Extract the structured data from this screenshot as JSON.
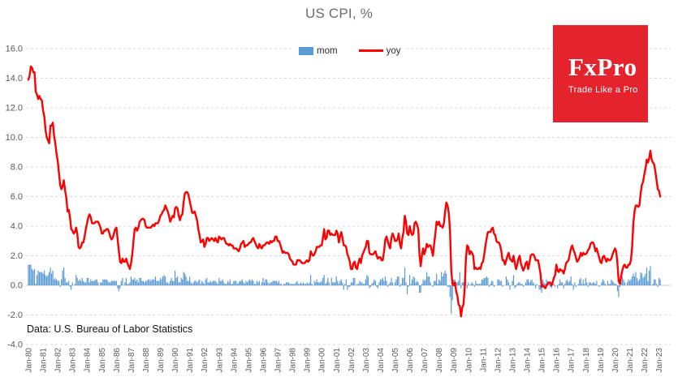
{
  "title": "US CPI, %",
  "source_note": "Data: U.S. Bureau of Labor Statistics",
  "logo": {
    "wordmark": "FxPro",
    "tagline": "Trade Like a Pro",
    "bg_color": "#e4232d",
    "text_color": "#ffffff"
  },
  "legend": {
    "position": "top-center",
    "items": [
      {
        "label": "mom",
        "type": "bar",
        "color": "#5b9bd5"
      },
      {
        "label": "yoy",
        "type": "line",
        "color": "#fe0000"
      }
    ]
  },
  "colors": {
    "grid": "#dadada",
    "zero_axis": "#c8c8c8",
    "axis_text": "#595959",
    "title_text": "#6b6b70"
  },
  "chart_data": {
    "type": "bar+line",
    "title": "US CPI, %",
    "x_unit": "month",
    "x_range": [
      "Jan-1980",
      "Feb-2023"
    ],
    "ylim": [
      -4.0,
      16.0
    ],
    "grid": "horizontal-dashed",
    "legend_position": "top-center",
    "y_tick_labels": [
      "16.0",
      "14.0",
      "12.0",
      "10.0",
      "8.0",
      "6.0",
      "4.0",
      "2.0",
      "0.0",
      "-2.0",
      "-4.0"
    ],
    "x_tick_labels": [
      "Jan-80",
      "Jan-81",
      "Jan-82",
      "Jan-83",
      "Jan-84",
      "Jan-85",
      "Jan-86",
      "Jan-87",
      "Jan-88",
      "Jan-89",
      "Jan-90",
      "Jan-91",
      "Jan-92",
      "Jan-93",
      "Jan-94",
      "Jan-95",
      "Jan-96",
      "Jan-97",
      "Jan-98",
      "Jan-99",
      "Jan-00",
      "Jan-01",
      "Jan-02",
      "Jan-03",
      "Jan-04",
      "Jan-05",
      "Jan-06",
      "Jan-07",
      "Jan-08",
      "Jan-09",
      "Jan-10",
      "Jan-11",
      "Jan-12",
      "Jan-13",
      "Jan-14",
      "Jan-15",
      "Jan-16",
      "Jan-17",
      "Jan-18",
      "Jan-19",
      "Jan-20",
      "Jan-21",
      "Jan-22",
      "Jan-23"
    ],
    "x_ticks_every_n_points": 12,
    "series": [
      {
        "name": "mom",
        "type": "bar",
        "color": "#5b9bd5",
        "values": [
          1.4,
          1.4,
          1.4,
          1.1,
          1.0,
          1.1,
          0.1,
          0.7,
          1.0,
          0.9,
          0.9,
          0.9,
          0.8,
          1.0,
          0.7,
          0.6,
          0.7,
          0.9,
          1.2,
          0.8,
          1.0,
          0.4,
          0.5,
          0.4,
          0.3,
          0.3,
          -0.1,
          0.4,
          1.0,
          1.2,
          0.5,
          0.2,
          0.2,
          0.3,
          -0.1,
          -0.3,
          0.2,
          0.0,
          0.1,
          0.7,
          0.5,
          0.3,
          0.4,
          0.3,
          0.5,
          0.3,
          0.2,
          0.2,
          0.5,
          0.5,
          0.2,
          0.4,
          0.3,
          0.3,
          0.3,
          0.4,
          0.4,
          0.2,
          0.0,
          0.2,
          0.2,
          0.4,
          0.4,
          0.4,
          0.4,
          0.3,
          0.2,
          0.2,
          0.3,
          0.3,
          0.3,
          0.3,
          0.3,
          -0.2,
          -0.4,
          -0.2,
          0.3,
          0.5,
          0.0,
          0.2,
          0.5,
          0.1,
          0.1,
          0.2,
          0.6,
          0.4,
          0.4,
          0.5,
          0.3,
          0.4,
          0.2,
          0.5,
          0.5,
          0.3,
          0.3,
          0.2,
          0.3,
          0.3,
          0.4,
          0.4,
          0.3,
          0.4,
          0.4,
          0.4,
          0.6,
          0.3,
          0.3,
          0.3,
          0.5,
          0.4,
          0.6,
          0.7,
          0.6,
          0.2,
          0.2,
          0.1,
          0.3,
          0.5,
          0.3,
          0.3,
          1.0,
          0.5,
          0.6,
          0.2,
          0.2,
          0.5,
          0.4,
          0.9,
          0.8,
          0.6,
          0.3,
          0.3,
          0.6,
          0.2,
          0.1,
          0.2,
          0.3,
          0.3,
          0.2,
          0.3,
          0.4,
          0.1,
          0.3,
          0.2,
          0.1,
          0.4,
          0.5,
          0.2,
          0.2,
          0.3,
          0.2,
          0.3,
          0.3,
          0.3,
          0.2,
          0.1,
          0.5,
          0.3,
          0.3,
          0.4,
          0.2,
          0.1,
          0.1,
          0.3,
          0.2,
          0.4,
          0.1,
          0.1,
          0.3,
          0.3,
          0.3,
          0.1,
          0.2,
          0.3,
          0.3,
          0.4,
          0.2,
          0.1,
          0.3,
          0.2,
          0.3,
          0.4,
          0.3,
          0.4,
          0.3,
          0.1,
          0.1,
          0.3,
          0.2,
          0.3,
          0.0,
          0.2,
          0.5,
          0.2,
          0.4,
          0.4,
          0.2,
          0.1,
          0.2,
          0.2,
          0.3,
          0.3,
          0.3,
          0.3,
          0.2,
          0.3,
          0.1,
          0.1,
          0.0,
          0.1,
          0.1,
          0.2,
          0.2,
          0.2,
          0.1,
          0.1,
          0.1,
          0.1,
          0.1,
          0.2,
          0.3,
          0.1,
          0.1,
          0.2,
          0.1,
          0.2,
          0.1,
          0.1,
          0.2,
          0.1,
          0.2,
          0.7,
          0.1,
          0.0,
          0.3,
          0.2,
          0.4,
          0.2,
          0.2,
          0.2,
          0.3,
          0.5,
          0.7,
          0.1,
          0.2,
          0.5,
          0.2,
          0.0,
          0.5,
          0.2,
          0.2,
          0.2,
          0.6,
          0.3,
          0.1,
          0.3,
          0.4,
          0.2,
          -0.3,
          0.1,
          0.4,
          -0.3,
          -0.1,
          -0.1,
          0.2,
          0.2,
          0.5,
          0.5,
          0.0,
          0.1,
          0.1,
          0.3,
          0.2,
          0.2,
          0.1,
          0.1,
          0.4,
          0.7,
          0.6,
          -0.2,
          -0.1,
          0.1,
          0.2,
          0.4,
          0.3,
          -0.1,
          -0.2,
          0.2,
          0.4,
          0.4,
          0.5,
          0.3,
          0.6,
          0.3,
          -0.1,
          0.1,
          0.2,
          0.5,
          0.2,
          0.0,
          0.2,
          0.4,
          0.6,
          0.6,
          -0.1,
          0.1,
          0.5,
          0.5,
          1.2,
          0.2,
          -0.6,
          -0.1,
          0.7,
          0.1,
          0.4,
          0.6,
          0.5,
          0.2,
          0.3,
          0.2,
          -0.5,
          -0.5,
          0.1,
          0.4,
          0.3,
          0.4,
          0.9,
          0.6,
          0.6,
          0.2,
          0.0,
          -0.1,
          0.3,
          0.3,
          0.8,
          0.1,
          0.4,
          0.3,
          0.9,
          0.6,
          0.8,
          1.0,
          0.8,
          -0.1,
          -0.1,
          -0.8,
          -1.9,
          -1.0,
          0.4,
          0.4,
          0.2,
          0.2,
          0.3,
          0.9,
          -0.2,
          0.2,
          0.2,
          0.2,
          0.3,
          -0.2,
          0.2,
          0.0,
          0.1,
          0.2,
          0.1,
          -0.1,
          0.3,
          0.1,
          0.1,
          0.1,
          0.1,
          0.4,
          0.4,
          0.5,
          0.5,
          0.6,
          0.5,
          -0.1,
          0.1,
          0.3,
          0.3,
          -0.1,
          0.0,
          0.0,
          0.4,
          0.4,
          0.3,
          0.3,
          -0.1,
          0.0,
          0.0,
          0.6,
          0.4,
          0.2,
          -0.3,
          0.0,
          0.3,
          0.7,
          -0.2,
          -0.1,
          0.1,
          0.2,
          0.2,
          0.1,
          0.1,
          -0.1,
          0.0,
          0.2,
          0.4,
          0.4,
          0.2,
          0.3,
          0.4,
          0.2,
          0.1,
          -0.2,
          0.1,
          0.0,
          -0.3,
          -0.3,
          -0.5,
          0.4,
          0.2,
          0.1,
          0.4,
          0.3,
          0.1,
          -0.1,
          -0.2,
          0.2,
          0.1,
          -0.1,
          0.0,
          -0.2,
          0.1,
          0.4,
          0.2,
          0.2,
          -0.2,
          0.1,
          0.3,
          0.4,
          0.2,
          0.3,
          0.6,
          0.1,
          -0.3,
          0.2,
          -0.1,
          0.0,
          0.1,
          0.4,
          0.5,
          0.1,
          0.4,
          0.1,
          0.5,
          0.2,
          -0.1,
          0.2,
          0.2,
          0.1,
          0.2,
          0.2,
          0.1,
          0.3,
          0.0,
          -0.1,
          0.0,
          0.2,
          0.4,
          0.3,
          0.1,
          0.0,
          0.3,
          0.1,
          0.1,
          0.4,
          0.3,
          0.2,
          0.1,
          0.1,
          -0.4,
          -0.8,
          -0.1,
          0.6,
          0.6,
          0.4,
          0.2,
          0.0,
          0.2,
          0.4,
          0.3,
          0.4,
          0.6,
          0.8,
          0.6,
          0.9,
          0.5,
          0.3,
          0.4,
          0.9,
          0.8,
          0.5,
          0.6,
          0.8,
          1.2,
          0.3,
          1.0,
          1.3,
          0.0,
          0.1,
          0.4,
          0.4,
          0.1,
          -0.1,
          0.5,
          0.4
        ]
      },
      {
        "name": "yoy",
        "type": "line",
        "color": "#fe0000",
        "values": [
          13.9,
          14.2,
          14.8,
          14.7,
          14.4,
          14.4,
          13.1,
          12.9,
          12.6,
          12.8,
          12.6,
          12.5,
          11.8,
          11.4,
          10.5,
          10.0,
          9.8,
          9.6,
          10.8,
          10.8,
          11.0,
          10.1,
          9.6,
          8.9,
          8.4,
          7.6,
          6.8,
          6.5,
          6.7,
          7.1,
          6.4,
          5.9,
          5.0,
          5.1,
          4.6,
          3.8,
          3.7,
          3.5,
          3.6,
          3.9,
          3.5,
          2.6,
          2.5,
          2.6,
          2.9,
          2.9,
          3.3,
          3.8,
          4.2,
          4.6,
          4.8,
          4.6,
          4.2,
          4.2,
          4.2,
          4.3,
          4.3,
          4.3,
          4.1,
          3.9,
          3.5,
          3.5,
          3.7,
          3.7,
          3.8,
          3.8,
          3.6,
          3.3,
          3.1,
          3.2,
          3.5,
          3.8,
          3.9,
          3.1,
          2.3,
          1.6,
          1.5,
          1.8,
          1.6,
          1.6,
          1.8,
          1.5,
          1.3,
          1.1,
          1.5,
          2.1,
          3.0,
          3.8,
          3.9,
          3.7,
          3.9,
          4.3,
          4.4,
          4.5,
          4.5,
          4.4,
          4.0,
          3.9,
          3.9,
          3.9,
          3.9,
          4.0,
          4.1,
          4.0,
          4.2,
          4.2,
          4.2,
          4.4,
          4.7,
          4.8,
          5.0,
          5.1,
          5.4,
          5.2,
          5.0,
          4.7,
          4.3,
          4.5,
          4.7,
          4.6,
          5.2,
          5.3,
          5.2,
          4.7,
          4.4,
          4.7,
          4.8,
          5.6,
          6.2,
          6.3,
          6.3,
          6.1,
          5.7,
          5.3,
          4.9,
          4.9,
          5.0,
          4.7,
          4.4,
          3.8,
          3.4,
          2.9,
          3.0,
          3.1,
          2.6,
          2.8,
          3.2,
          3.2,
          3.0,
          3.1,
          3.2,
          3.1,
          3.0,
          3.2,
          3.0,
          2.9,
          3.3,
          3.2,
          3.1,
          3.2,
          3.2,
          3.0,
          2.8,
          2.8,
          2.7,
          2.8,
          2.7,
          2.7,
          2.5,
          2.5,
          2.5,
          2.4,
          2.3,
          2.5,
          2.8,
          2.9,
          3.0,
          2.6,
          2.7,
          2.7,
          2.8,
          2.9,
          2.9,
          3.1,
          3.2,
          3.0,
          2.8,
          2.6,
          2.5,
          2.8,
          2.6,
          2.5,
          2.7,
          2.7,
          2.8,
          2.9,
          2.9,
          2.8,
          3.0,
          2.9,
          3.0,
          3.0,
          3.3,
          3.3,
          3.0,
          3.0,
          2.8,
          2.5,
          2.2,
          2.3,
          2.2,
          2.2,
          2.2,
          2.1,
          1.8,
          1.7,
          1.6,
          1.4,
          1.4,
          1.4,
          1.7,
          1.7,
          1.7,
          1.6,
          1.5,
          1.5,
          1.5,
          1.6,
          1.7,
          1.6,
          1.7,
          2.3,
          2.1,
          2.0,
          2.1,
          2.3,
          2.6,
          2.6,
          2.6,
          2.7,
          2.7,
          3.2,
          3.8,
          3.1,
          3.2,
          3.7,
          3.7,
          3.4,
          3.5,
          3.4,
          3.4,
          3.4,
          3.7,
          3.5,
          2.9,
          3.3,
          3.6,
          3.2,
          2.7,
          2.7,
          2.6,
          2.1,
          1.9,
          1.6,
          1.1,
          1.1,
          1.5,
          1.6,
          1.2,
          1.1,
          1.5,
          1.8,
          1.5,
          2.0,
          2.2,
          2.4,
          2.6,
          3.0,
          3.0,
          2.2,
          2.1,
          2.1,
          2.1,
          2.2,
          2.3,
          2.0,
          1.8,
          1.9,
          1.9,
          1.7,
          1.7,
          2.3,
          3.1,
          3.3,
          3.0,
          2.7,
          2.5,
          3.2,
          3.5,
          3.3,
          3.0,
          3.0,
          3.1,
          3.5,
          2.8,
          2.5,
          3.2,
          3.6,
          4.7,
          4.3,
          3.5,
          3.4,
          4.0,
          3.6,
          3.4,
          3.5,
          4.2,
          4.3,
          4.1,
          3.8,
          2.1,
          1.3,
          2.0,
          2.5,
          2.1,
          2.4,
          2.8,
          2.6,
          2.7,
          2.7,
          2.4,
          2.0,
          2.8,
          3.5,
          4.3,
          4.1,
          4.3,
          4.0,
          4.0,
          3.9,
          4.2,
          5.0,
          5.6,
          5.4,
          4.9,
          3.7,
          1.1,
          0.1,
          0.0,
          0.2,
          -0.4,
          -0.7,
          -1.3,
          -1.4,
          -2.1,
          -1.5,
          -1.3,
          -0.2,
          1.8,
          2.7,
          2.6,
          2.1,
          2.3,
          2.2,
          2.0,
          1.1,
          1.2,
          1.1,
          1.1,
          1.2,
          1.1,
          1.5,
          1.6,
          2.1,
          2.7,
          3.2,
          3.6,
          3.6,
          3.6,
          3.8,
          3.9,
          3.5,
          3.4,
          3.0,
          2.9,
          2.9,
          2.7,
          2.3,
          1.7,
          1.7,
          1.4,
          1.7,
          2.0,
          2.2,
          1.8,
          1.7,
          1.6,
          2.0,
          1.5,
          1.1,
          1.4,
          1.8,
          2.0,
          1.5,
          1.2,
          1.0,
          1.2,
          1.5,
          1.6,
          1.1,
          1.5,
          2.0,
          2.1,
          2.1,
          2.0,
          1.7,
          1.7,
          1.7,
          1.3,
          0.8,
          -0.1,
          0.0,
          -0.1,
          -0.2,
          0.0,
          0.1,
          0.2,
          0.2,
          0.0,
          0.2,
          0.5,
          0.7,
          1.4,
          1.0,
          0.9,
          1.1,
          1.0,
          1.0,
          0.8,
          1.1,
          1.5,
          1.6,
          1.7,
          2.1,
          2.5,
          2.7,
          2.4,
          2.2,
          1.9,
          1.6,
          1.7,
          1.9,
          2.2,
          2.0,
          2.2,
          2.1,
          2.1,
          2.2,
          2.4,
          2.5,
          2.8,
          2.9,
          2.9,
          2.7,
          2.3,
          2.5,
          2.2,
          1.9,
          1.6,
          1.5,
          1.9,
          2.0,
          1.8,
          1.6,
          1.8,
          1.7,
          1.7,
          1.8,
          2.1,
          2.3,
          2.5,
          2.3,
          1.5,
          0.3,
          0.1,
          0.6,
          1.0,
          1.3,
          1.4,
          1.2,
          1.2,
          1.4,
          1.4,
          1.7,
          2.6,
          4.2,
          5.0,
          5.4,
          5.4,
          5.3,
          5.4,
          6.2,
          6.8,
          7.0,
          7.5,
          7.9,
          8.5,
          8.3,
          8.6,
          9.1,
          8.5,
          8.3,
          8.2,
          7.7,
          7.1,
          6.5,
          6.4,
          6.0
        ]
      }
    ]
  }
}
